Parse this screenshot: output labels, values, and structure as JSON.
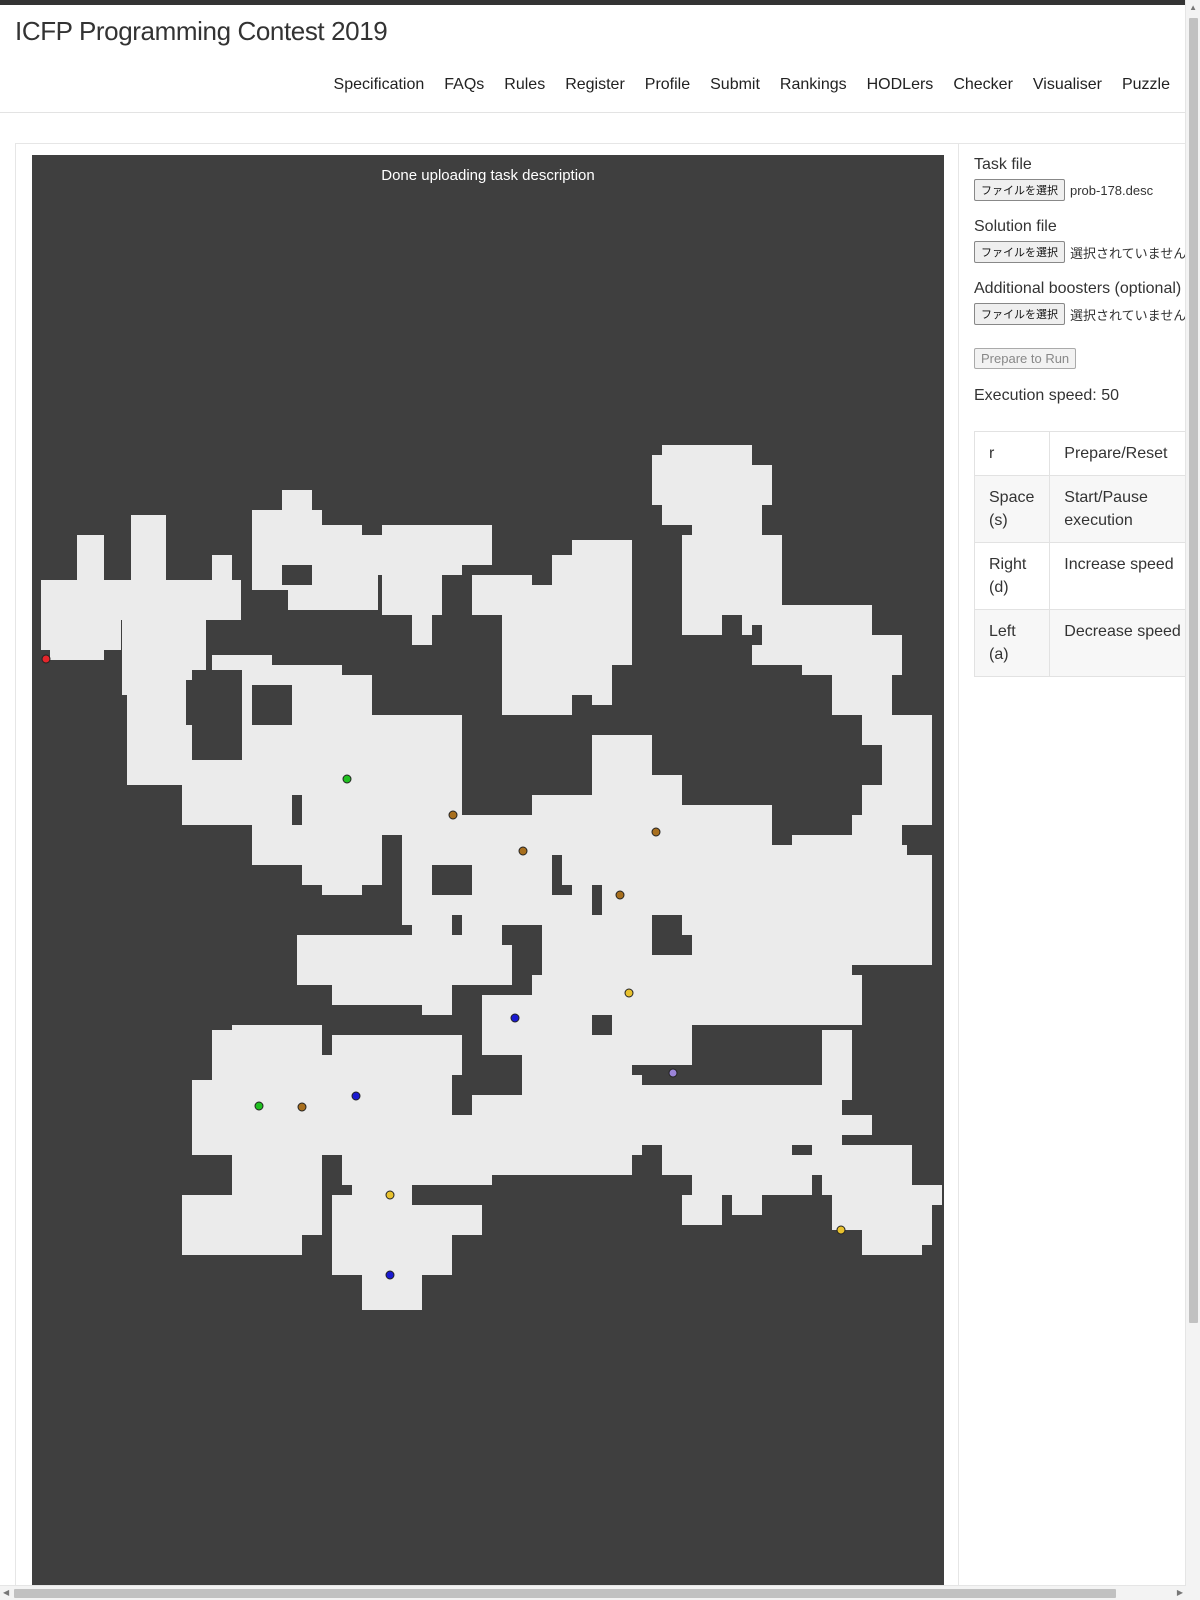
{
  "site": {
    "title": "ICFP Programming Contest 2019"
  },
  "nav": [
    "Specification",
    "FAQs",
    "Rules",
    "Register",
    "Profile",
    "Submit",
    "Rankings",
    "HODLers",
    "Checker",
    "Visualiser",
    "Puzzle"
  ],
  "visualiser": {
    "status": "Done uploading task description",
    "colors": {
      "background": "#3f3f3f",
      "free_cell": "#ebebeb",
      "worker": "#e5262b"
    },
    "boosters": [
      {
        "type": "wheels",
        "color": "#e8c12e"
      },
      {
        "type": "drill",
        "color": "#20c020"
      },
      {
        "type": "manipulator",
        "color": "#a86f1e"
      },
      {
        "type": "teleport",
        "color": "#1a1ad0"
      },
      {
        "type": "clone",
        "color": "#9b84d8"
      }
    ]
  },
  "controls": {
    "task_file": {
      "label": "Task file",
      "button": "ファイルを選択",
      "value": "prob-178.desc"
    },
    "solution_file": {
      "label": "Solution file",
      "button": "ファイルを選択",
      "value": "選択されていません"
    },
    "boosters_file": {
      "label": "Additional boosters (optional)",
      "button": "ファイルを選択",
      "value": "選択されていません"
    },
    "prepare_button": "Prepare to Run",
    "speed_text": "Execution speed: 50"
  },
  "keys": [
    {
      "key": "r",
      "action": "Prepare/Reset"
    },
    {
      "key": "Space (s)",
      "action": "Start/Pause execution"
    },
    {
      "key": "Right (d)",
      "action": "Increase speed"
    },
    {
      "key": "Left (a)",
      "action": "Decrease speed"
    }
  ]
}
